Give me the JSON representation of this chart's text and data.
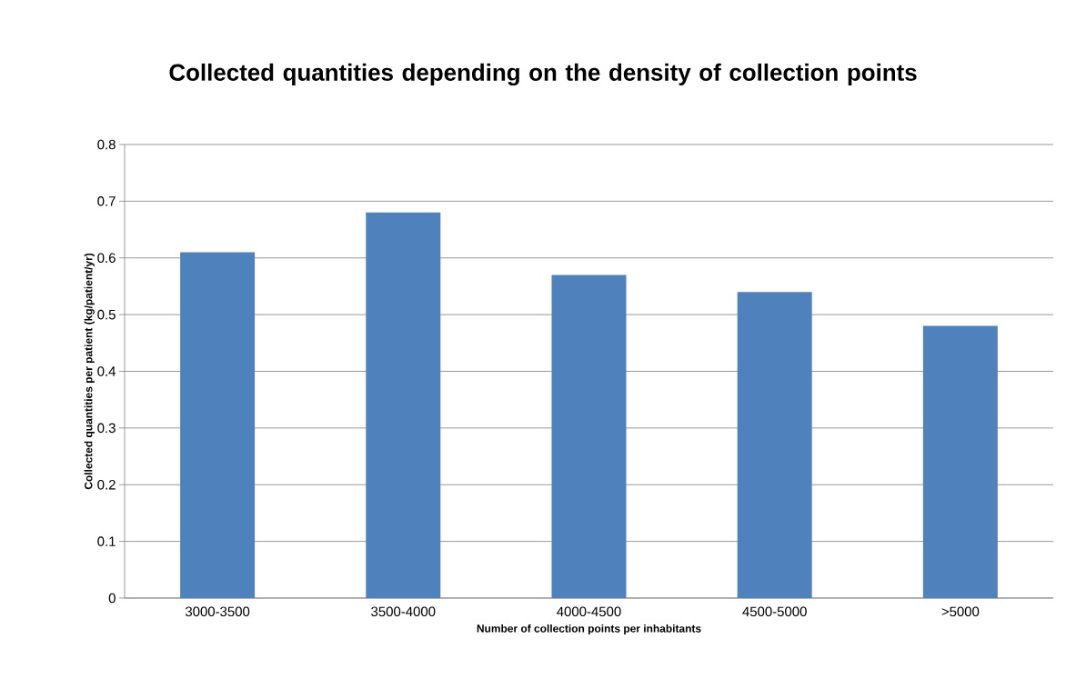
{
  "chart_data": {
    "type": "bar",
    "title": "Collected quantities depending on the density of collection points",
    "xlabel": "Number of collection points per inhabitants",
    "ylabel": "Collected quantities per patient (kg/patient/yr)",
    "categories": [
      "3000-3500",
      "3500-4000",
      "4000-4500",
      "4500-5000",
      ">5000"
    ],
    "values": [
      0.61,
      0.68,
      0.57,
      0.54,
      0.48
    ],
    "color": "#4f81bd",
    "ylim": [
      0,
      0.8
    ],
    "yticks": [
      0,
      0.1,
      0.2,
      0.3,
      0.4,
      0.5,
      0.6,
      0.7,
      0.8
    ],
    "grid": "y"
  }
}
